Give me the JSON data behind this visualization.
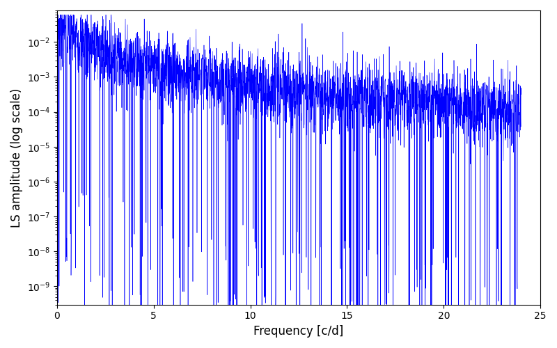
{
  "title": "",
  "xlabel": "Frequency [c/d]",
  "ylabel": "LS amplitude (log scale)",
  "xlim": [
    0,
    25
  ],
  "ylim": [
    3e-10,
    0.08
  ],
  "freq_max": 24.0,
  "n_points": 3000,
  "line_color": "#0000ff",
  "line_width": 0.4,
  "background_color": "#ffffff",
  "seed": 7,
  "figsize": [
    8.0,
    5.0
  ],
  "dpi": 100
}
